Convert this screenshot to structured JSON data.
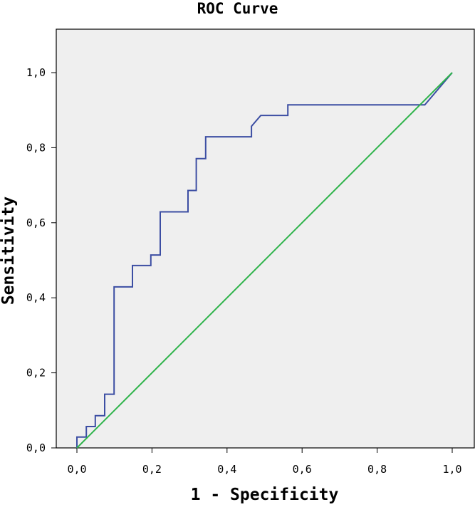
{
  "chart_data": {
    "type": "line",
    "title": "ROC Curve",
    "xlabel": "1 - Specificity",
    "ylabel": "Sensitivity",
    "xlim": [
      0.0,
      1.0
    ],
    "ylim": [
      0.0,
      1.0
    ],
    "x_ticks": [
      "0,0",
      "0,2",
      "0,4",
      "0,6",
      "0,8",
      "1,0"
    ],
    "y_ticks": [
      "0,0",
      "0,2",
      "0,4",
      "0,6",
      "0,8",
      "1,0"
    ],
    "grid": false,
    "background_color": "#efefef",
    "series": [
      {
        "color": "#3c4ea3",
        "style": "step",
        "points": [
          [
            0.0,
            0.0
          ],
          [
            0.0,
            0.029
          ],
          [
            0.025,
            0.029
          ],
          [
            0.025,
            0.057
          ],
          [
            0.049,
            0.057
          ],
          [
            0.049,
            0.086
          ],
          [
            0.074,
            0.086
          ],
          [
            0.074,
            0.143
          ],
          [
            0.099,
            0.143
          ],
          [
            0.099,
            0.429
          ],
          [
            0.148,
            0.429
          ],
          [
            0.148,
            0.486
          ],
          [
            0.197,
            0.486
          ],
          [
            0.197,
            0.514
          ],
          [
            0.222,
            0.514
          ],
          [
            0.222,
            0.629
          ],
          [
            0.296,
            0.629
          ],
          [
            0.296,
            0.686
          ],
          [
            0.318,
            0.686
          ],
          [
            0.318,
            0.771
          ],
          [
            0.343,
            0.771
          ],
          [
            0.343,
            0.829
          ],
          [
            0.465,
            0.829
          ],
          [
            0.465,
            0.857
          ],
          [
            0.49,
            0.886
          ],
          [
            0.562,
            0.886
          ],
          [
            0.562,
            0.914
          ],
          [
            0.927,
            0.914
          ],
          [
            1.0,
            1.0
          ]
        ]
      },
      {
        "color": "#2db34a",
        "style": "line",
        "points": [
          [
            0.0,
            0.0
          ],
          [
            1.0,
            1.0
          ]
        ]
      }
    ]
  }
}
